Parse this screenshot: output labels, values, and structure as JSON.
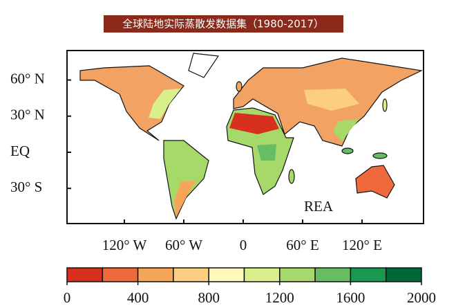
{
  "title": "全球陆地实际蒸散发数据集（1980-2017）",
  "map_label": "REA",
  "lat_ticks": [
    {
      "value": 60,
      "label": "60° N"
    },
    {
      "value": 30,
      "label": "30° N"
    },
    {
      "value": 0,
      "label": "EQ"
    },
    {
      "value": -30,
      "label": "30° S"
    }
  ],
  "lon_ticks": [
    {
      "value": -120,
      "label": "120° W"
    },
    {
      "value": -60,
      "label": "60° W"
    },
    {
      "value": 0,
      "label": "0"
    },
    {
      "value": 60,
      "label": "60° E"
    },
    {
      "value": 120,
      "label": "120° E"
    }
  ],
  "colorbar": {
    "range": [
      0,
      2000
    ],
    "ticks": [
      0,
      400,
      800,
      1200,
      1600,
      2000
    ],
    "colors": [
      "#d7301f",
      "#ee6a3c",
      "#f6a55a",
      "#fbcf7f",
      "#fff7bc",
      "#d9ef8b",
      "#a6d96a",
      "#66bd63",
      "#1a9850",
      "#006837"
    ]
  }
}
